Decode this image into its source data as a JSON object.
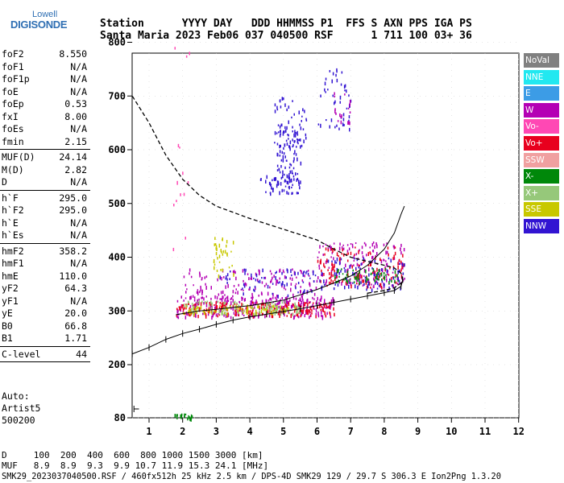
{
  "logo": {
    "top": "Lowell",
    "main": "DIGISONDE"
  },
  "header": {
    "row1": "Station      YYYY DAY   DDD HHMMSS P1  FFS S AXN PPS IGA PS",
    "row2": "Santa Maria 2023 Feb06 037 040500 RSF      1 711 100 03+ 36"
  },
  "params": [
    [
      {
        "k": "foF2",
        "v": "8.550"
      },
      {
        "k": "foF1",
        "v": "N/A"
      },
      {
        "k": "foF1p",
        "v": "N/A"
      },
      {
        "k": "foE",
        "v": "N/A"
      },
      {
        "k": "foEp",
        "v": "0.53"
      },
      {
        "k": "fxI",
        "v": "8.00"
      },
      {
        "k": "foEs",
        "v": "N/A"
      },
      {
        "k": "fmin",
        "v": "2.15"
      }
    ],
    [
      {
        "k": "MUF(D)",
        "v": "24.14"
      },
      {
        "k": "M(D)",
        "v": "2.82"
      },
      {
        "k": "D",
        "v": "N/A"
      }
    ],
    [
      {
        "k": "h`F",
        "v": "295.0"
      },
      {
        "k": "h`F2",
        "v": "295.0"
      },
      {
        "k": "h`E",
        "v": "N/A"
      },
      {
        "k": "h`Es",
        "v": "N/A"
      }
    ],
    [
      {
        "k": "hmF2",
        "v": "358.2"
      },
      {
        "k": "hmF1",
        "v": "N/A"
      },
      {
        "k": "hmE",
        "v": "110.0"
      },
      {
        "k": "yF2",
        "v": "64.3"
      },
      {
        "k": "yF1",
        "v": "N/A"
      },
      {
        "k": "yE",
        "v": "20.0"
      },
      {
        "k": "B0",
        "v": "66.8"
      },
      {
        "k": "B1",
        "v": "1.71"
      }
    ],
    [
      {
        "k": "C-level",
        "v": "44"
      }
    ]
  ],
  "auto": {
    "l1": "Auto:",
    "l2": "Artist5",
    "l3": "500200"
  },
  "legend": [
    {
      "label": "NoVal",
      "color": "#808080"
    },
    {
      "label": "NNE",
      "color": "#22e8f0"
    },
    {
      "label": "E",
      "color": "#3c9ce6"
    },
    {
      "label": "W",
      "color": "#b400b4"
    },
    {
      "label": "Vo-",
      "color": "#ff48b4"
    },
    {
      "label": "Vo+",
      "color": "#e8001e"
    },
    {
      "label": "SSW",
      "color": "#f0a0a0"
    },
    {
      "label": "X-",
      "color": "#00880a"
    },
    {
      "label": "X+",
      "color": "#96c87a"
    },
    {
      "label": "SSE",
      "color": "#c8c800"
    },
    {
      "label": "NNW",
      "color": "#3214d2"
    }
  ],
  "chart_data": {
    "type": "scatter",
    "title": "",
    "xlabel": "",
    "ylabel": "",
    "xlim": [
      0.5,
      12
    ],
    "ylim": [
      80,
      900
    ],
    "xticks": [
      1,
      2,
      3,
      4,
      5,
      6,
      7,
      8,
      9,
      10,
      11,
      12
    ],
    "yticks": [
      80,
      200,
      300,
      400,
      500,
      600,
      700,
      800,
      900
    ],
    "profile_dashed": [
      [
        0.5,
        700
      ],
      [
        1.0,
        650
      ],
      [
        1.5,
        590
      ],
      [
        2.0,
        545
      ],
      [
        2.5,
        515
      ],
      [
        3.0,
        495
      ],
      [
        4.0,
        472
      ],
      [
        5.0,
        452
      ],
      [
        6.0,
        432
      ],
      [
        6.5,
        415
      ],
      [
        7.0,
        400
      ],
      [
        7.5,
        392
      ],
      [
        8.0,
        385
      ],
      [
        8.3,
        380
      ],
      [
        8.5,
        370
      ],
      [
        8.55,
        358
      ],
      [
        8.5,
        352
      ],
      [
        8.3,
        343
      ],
      [
        8.0,
        338
      ],
      [
        7.5,
        333
      ]
    ],
    "trace_ticked": [
      [
        0.5,
        220
      ],
      [
        1.0,
        232
      ],
      [
        1.5,
        247
      ],
      [
        2.0,
        258
      ],
      [
        2.5,
        266
      ],
      [
        3.0,
        275
      ],
      [
        3.5,
        283
      ],
      [
        4.0,
        289
      ],
      [
        4.5,
        294
      ],
      [
        5.0,
        299
      ],
      [
        5.5,
        304
      ],
      [
        6.0,
        310
      ],
      [
        6.5,
        316
      ],
      [
        7.0,
        322
      ],
      [
        7.5,
        328
      ],
      [
        8.0,
        334
      ],
      [
        8.3,
        338
      ],
      [
        8.5,
        346
      ],
      [
        8.55,
        358
      ]
    ],
    "trace_solid": [
      [
        1.8,
        293
      ],
      [
        2.5,
        300
      ],
      [
        3.0,
        303
      ],
      [
        4.0,
        310
      ],
      [
        5.0,
        320
      ],
      [
        6.0,
        340
      ],
      [
        6.5,
        352
      ],
      [
        7.0,
        365
      ],
      [
        7.5,
        385
      ],
      [
        8.0,
        415
      ],
      [
        8.3,
        445
      ],
      [
        8.5,
        480
      ],
      [
        8.6,
        495
      ]
    ],
    "echo_clusters": [
      {
        "xr": [
          1.8,
          6.5
        ],
        "yr": [
          290,
          330
        ],
        "color": "#b400b4",
        "n": 260
      },
      {
        "xr": [
          1.8,
          6.5
        ],
        "yr": [
          292,
          318
        ],
        "color": "#e8001e",
        "n": 220
      },
      {
        "xr": [
          2.0,
          6.0
        ],
        "yr": [
          320,
          380
        ],
        "color": "#b400b4",
        "n": 160
      },
      {
        "xr": [
          2.0,
          5.5
        ],
        "yr": [
          296,
          312
        ],
        "color": "#c8c800",
        "n": 90
      },
      {
        "xr": [
          2.0,
          5.5
        ],
        "yr": [
          296,
          320
        ],
        "color": "#96c87a",
        "n": 80
      },
      {
        "xr": [
          3.0,
          6.0
        ],
        "yr": [
          330,
          380
        ],
        "color": "#3214d2",
        "n": 70
      },
      {
        "xr": [
          6.0,
          8.6
        ],
        "yr": [
          345,
          430
        ],
        "color": "#b400b4",
        "n": 160
      },
      {
        "xr": [
          6.0,
          8.6
        ],
        "yr": [
          345,
          420
        ],
        "color": "#e8001e",
        "n": 120
      },
      {
        "xr": [
          6.0,
          8.6
        ],
        "yr": [
          340,
          400
        ],
        "color": "#3214d2",
        "n": 90
      },
      {
        "xr": [
          6.5,
          8.4
        ],
        "yr": [
          355,
          380
        ],
        "color": "#00880a",
        "n": 60
      },
      {
        "xr": [
          4.3,
          5.5
        ],
        "yr": [
          520,
          560
        ],
        "color": "#3214d2",
        "n": 60
      },
      {
        "xr": [
          4.8,
          5.5
        ],
        "yr": [
          540,
          650
        ],
        "color": "#3214d2",
        "n": 80
      },
      {
        "xr": [
          4.7,
          5.7
        ],
        "yr": [
          600,
          700
        ],
        "color": "#3214d2",
        "n": 50
      },
      {
        "xr": [
          6.0,
          7.0
        ],
        "yr": [
          640,
          760
        ],
        "color": "#3214d2",
        "n": 45
      },
      {
        "xr": [
          6.5,
          7.0
        ],
        "yr": [
          650,
          710
        ],
        "color": "#b400b4",
        "n": 18
      },
      {
        "xr": [
          2.9,
          3.5
        ],
        "yr": [
          360,
          440
        ],
        "color": "#c8c800",
        "n": 35
      },
      {
        "xr": [
          1.7,
          2.2
        ],
        "yr": [
          400,
          800
        ],
        "color": "#ff48b4",
        "n": 14
      },
      {
        "xr": [
          1.7,
          2.3
        ],
        "yr": [
          80,
          90
        ],
        "color": "#00880a",
        "n": 20
      }
    ]
  },
  "footer": {
    "d": "D     100  200  400  600  800 1000 1500 3000 [km]",
    "muf": "MUF   8.9  8.9  9.3  9.9 10.7 11.9 15.3 24.1 [MHz]",
    "info": "SMK29_2023037040500.RSF / 460fx512h 25 kHz 2.5 km / DPS-4D SMK29 129 / 29.7 S 306.3 E Ion2Png 1.3.20"
  }
}
